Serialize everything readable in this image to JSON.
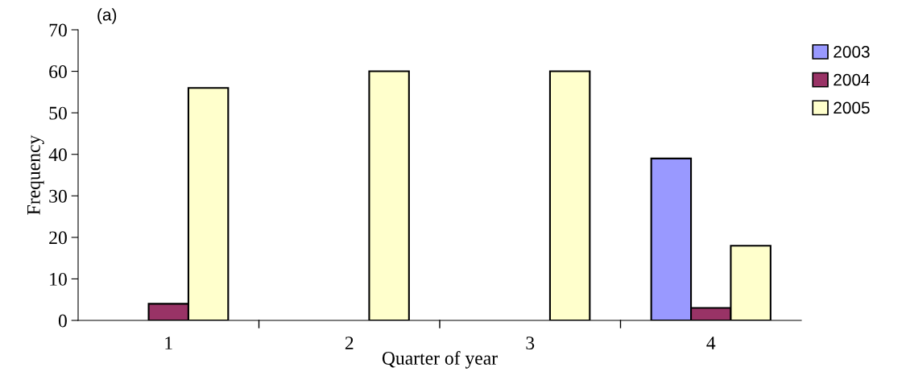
{
  "chart_data": {
    "type": "bar",
    "xlabel": "Quarter of year",
    "ylabel": "Frequency",
    "annotations": [
      "(a)"
    ],
    "categories": [
      "1",
      "2",
      "3",
      "4"
    ],
    "series": [
      {
        "name": "2003",
        "color": "#9999ff",
        "values": [
          0,
          0,
          0,
          39
        ]
      },
      {
        "name": "2004",
        "color": "#993366",
        "values": [
          4,
          0,
          0,
          3
        ]
      },
      {
        "name": "2005",
        "color": "#ffffcc",
        "values": [
          56,
          60,
          60,
          18
        ]
      }
    ],
    "ylim": [
      0,
      70
    ],
    "yticks": [
      0,
      10,
      20,
      30,
      40,
      50,
      60,
      70
    ],
    "grid": false,
    "legend": "top right"
  }
}
